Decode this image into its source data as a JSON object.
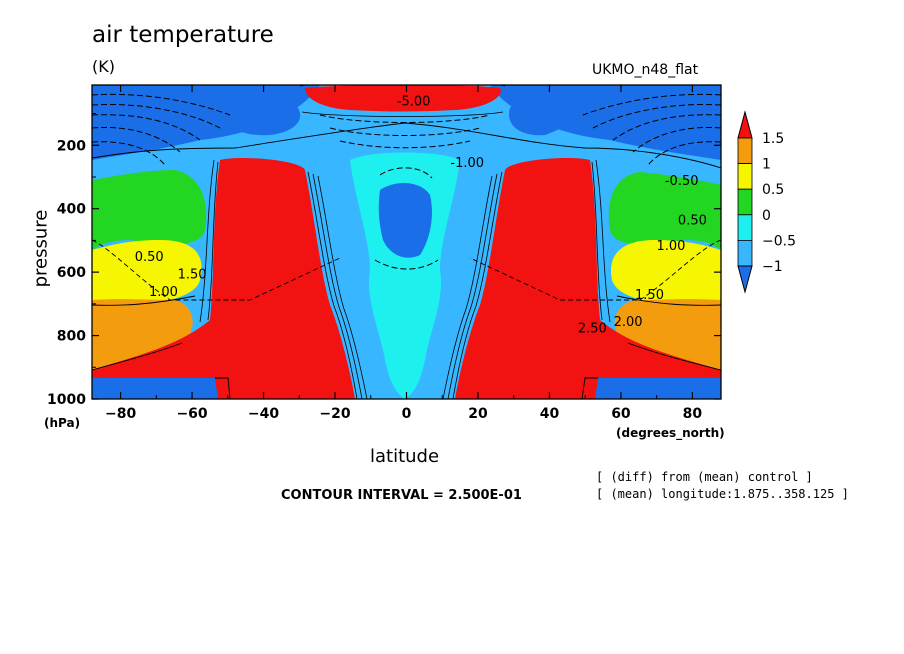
{
  "page": {
    "title": "air temperature",
    "units": "(K)",
    "model": "UKMO_n48_flat",
    "contour_interval": "CONTOUR INTERVAL = 2.500E-01",
    "note_diff": "[ (diff) from (mean) control ]",
    "note_mean": "[ (mean) longitude:1.875..358.125 ]"
  },
  "colors": {
    "le_minus1": "#1a6fe8",
    "minus1_to_minus05": "#38b6ff",
    "minus05_to_0": "#1ef0f0",
    "0_to_05": "#22d622",
    "05_to_1": "#f6f600",
    "1_to_15": "#f39c0e",
    "ge_15": "#f21212",
    "ground": "#1a6fe8"
  },
  "chart_data": {
    "type": "heatmap",
    "title": "air temperature",
    "units": "(K)",
    "xlabel": "latitude",
    "x_unit": "(degrees_north)",
    "ylabel": "pressure",
    "y_unit": "(hPa)",
    "xlim": [
      -88,
      88
    ],
    "ylim": [
      1000,
      10
    ],
    "x_ticks": [
      -80,
      -60,
      -40,
      -20,
      0,
      20,
      40,
      60,
      80
    ],
    "y_ticks": [
      200,
      400,
      600,
      800,
      1000
    ],
    "contour_interval": 0.25,
    "colorbar": {
      "levels": [
        -1,
        -0.5,
        0,
        0.5,
        1,
        1.5
      ],
      "level_labels": [
        "−1",
        "−0.5",
        "0",
        "0.5",
        "1",
        "1.5"
      ],
      "extend": "both",
      "orientation": "vertical"
    },
    "contour_labels": [
      {
        "text": "0.50",
        "lat": -72,
        "p": 565
      },
      {
        "text": "1.00",
        "lat": -68,
        "p": 675
      },
      {
        "text": "1.50",
        "lat": -60,
        "p": 620
      },
      {
        "text": "-0.50",
        "lat": 77,
        "p": 325
      },
      {
        "text": "0.50",
        "lat": 80,
        "p": 450
      },
      {
        "text": "1.00",
        "lat": 74,
        "p": 530
      },
      {
        "text": "1.50",
        "lat": 68,
        "p": 685
      },
      {
        "text": "2.00",
        "lat": 62,
        "p": 770
      },
      {
        "text": "2.50",
        "lat": 52,
        "p": 790
      },
      {
        "text": "-1.00",
        "lat": 17,
        "p": 268
      },
      {
        "text": "-5.00",
        "lat": 2,
        "p": 75
      }
    ]
  }
}
